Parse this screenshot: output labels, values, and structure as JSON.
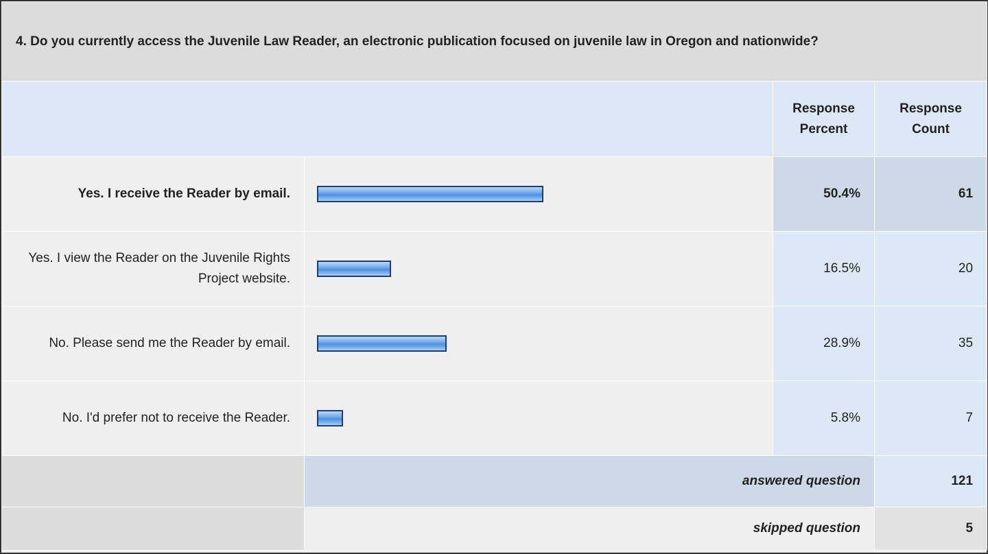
{
  "question": "4. Do you currently access the Juvenile Law Reader, an electronic publication focused on juvenile law in Oregon and nationwide?",
  "headers": [
    "Response Percent",
    "Response Count"
  ],
  "rows": [
    {
      "label": "Yes. I receive the Reader by email.",
      "percent": 50.4,
      "percent_label": "50.4%",
      "count": 61
    },
    {
      "label": "Yes. I view the Reader on the Juvenile Rights Project website.",
      "percent": 16.5,
      "percent_label": "16.5%",
      "count": 20
    },
    {
      "label": "No. Please send me the Reader by email.",
      "percent": 28.9,
      "percent_label": "28.9%",
      "count": 35
    },
    {
      "label": "No. I'd prefer not to receive the Reader.",
      "percent": 5.8,
      "percent_label": "5.8%",
      "count": 7
    }
  ],
  "answered": {
    "label": "answered question",
    "value": 121
  },
  "skipped": {
    "label": "skipped question",
    "value": 5
  }
}
